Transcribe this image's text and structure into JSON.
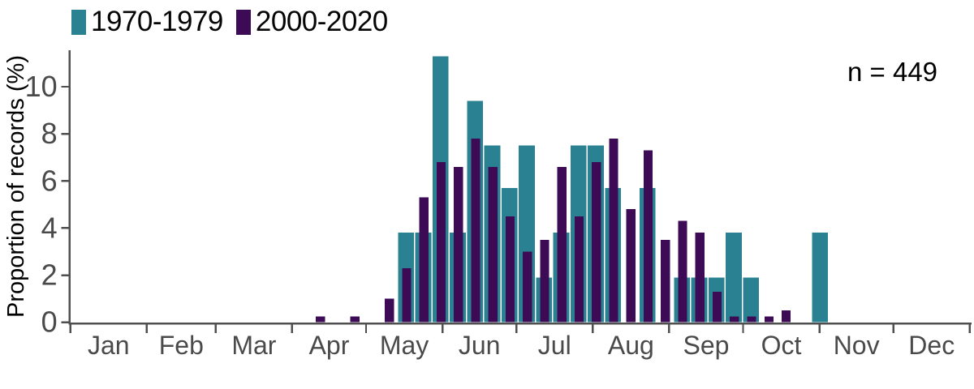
{
  "legend": {
    "items": [
      {
        "label": "1970-1979",
        "color": "#2a8191"
      },
      {
        "label": "2000-2020",
        "color": "#3d0a56"
      }
    ]
  },
  "annotation": {
    "text": "n = 449"
  },
  "axis": {
    "ylabel": "Proportion of records (%)",
    "yticks": [
      0,
      2,
      4,
      6,
      8,
      10
    ],
    "months": [
      "Jan",
      "Feb",
      "Mar",
      "Apr",
      "May",
      "Jun",
      "Jul",
      "Aug",
      "Sep",
      "Oct",
      "Nov",
      "Dec"
    ],
    "month_days": [
      31,
      28,
      31,
      30,
      31,
      30,
      31,
      31,
      30,
      31,
      30,
      31
    ]
  },
  "chart_data": {
    "type": "bar",
    "title": "",
    "xlabel": "",
    "ylabel": "Proportion of records (%)",
    "annotation": "n = 449",
    "ylim": [
      0,
      11.6
    ],
    "yticks": [
      0,
      2,
      4,
      6,
      8,
      10
    ],
    "grid": false,
    "legend_position": "top-left",
    "x_axis": "months Jan-Dec, ticks at month boundaries",
    "x_encoding": "weekly bins by day-of-year (Jan 1 = day 0); each bar spans ~7 days from bin start",
    "bin_start_days": [
      98,
      112,
      126,
      133,
      140,
      147,
      154,
      161,
      168,
      175,
      182,
      189,
      196,
      203,
      210,
      217,
      224,
      231,
      238,
      245,
      252,
      259,
      266,
      273,
      280,
      287,
      301
    ],
    "series": [
      {
        "name": "1970-1979",
        "color": "#2a8191",
        "values": [
          0,
          0,
          0,
          3.8,
          3.8,
          11.3,
          3.8,
          9.4,
          7.5,
          5.7,
          7.5,
          1.9,
          3.8,
          7.5,
          7.5,
          5.7,
          0,
          5.7,
          0,
          1.9,
          1.9,
          1.9,
          3.8,
          1.9,
          0,
          0,
          3.8
        ]
      },
      {
        "name": "2000-2020",
        "color": "#3d0a56",
        "values": [
          0.25,
          0.25,
          1.0,
          2.3,
          5.3,
          6.8,
          6.6,
          7.8,
          6.6,
          4.5,
          3.0,
          3.5,
          6.6,
          4.5,
          6.8,
          7.8,
          4.8,
          7.3,
          3.5,
          4.3,
          3.8,
          1.3,
          0.25,
          0.25,
          0.25,
          0.5,
          0
        ]
      }
    ]
  }
}
